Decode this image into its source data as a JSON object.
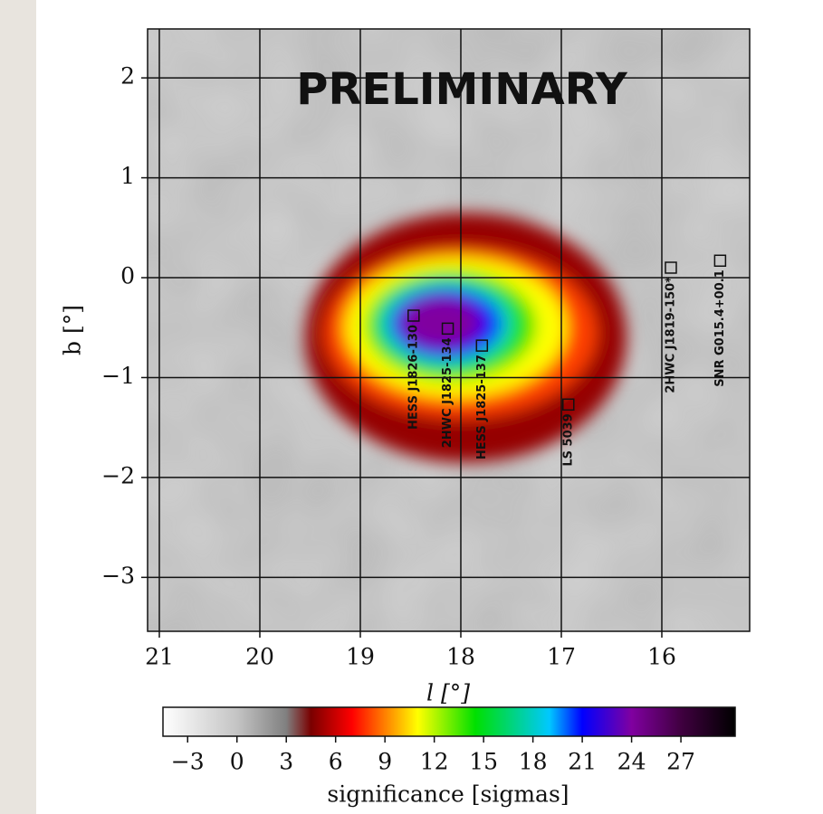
{
  "chart_data": {
    "type": "heatmap",
    "title": "PRELIMINARY",
    "x_label": "l [°]",
    "y_label": "b [°]",
    "xlim": [
      21.117,
      15.126
    ],
    "ylim": [
      -3.54,
      2.49
    ],
    "xticks": [
      21,
      20,
      19,
      18,
      17,
      16
    ],
    "yticks": [
      {
        "value": -3,
        "label": "−3"
      },
      {
        "value": -2,
        "label": "−2"
      },
      {
        "value": -1,
        "label": "−1"
      },
      0,
      1,
      2
    ],
    "grid": true,
    "background_color": "#bdbdbd",
    "contours": [
      {
        "level": 5,
        "l": 17.95,
        "b": -0.6,
        "rl": 1.6,
        "rb": 1.25
      },
      {
        "level": 8,
        "l": 18.0,
        "b": -0.55,
        "rl": 1.35,
        "rb": 0.85
      },
      {
        "level": 11,
        "l": 18.05,
        "b": -0.5,
        "rl": 1.1,
        "rb": 0.7
      },
      {
        "level": 14,
        "l": 18.1,
        "b": -0.48,
        "rl": 0.85,
        "rb": 0.55
      },
      {
        "level": 18,
        "l": 18.15,
        "b": -0.46,
        "rl": 0.65,
        "rb": 0.42
      },
      {
        "level": 21,
        "l": 18.15,
        "b": -0.46,
        "rl": 0.55,
        "rb": 0.35
      },
      {
        "level": 24,
        "l": 18.2,
        "b": -0.45,
        "rl": 0.4,
        "rb": 0.26
      }
    ],
    "sources": [
      {
        "name": "HESS J1826-130",
        "l": 18.47,
        "b": -0.38
      },
      {
        "name": "2HWC J1825-134",
        "l": 18.13,
        "b": -0.51
      },
      {
        "name": "HESS J1825-137",
        "l": 17.79,
        "b": -0.68
      },
      {
        "name": "LS 5039",
        "l": 16.93,
        "b": -1.27
      },
      {
        "name": "2HWC J1819-150*",
        "l": 15.91,
        "b": 0.1
      },
      {
        "name": "SNR G015.4+00.1",
        "l": 15.42,
        "b": 0.17
      }
    ],
    "colorbar": {
      "label": "significance [sigmas]",
      "lim": [
        -4.5,
        30.3
      ],
      "ticks": [
        {
          "value": -3,
          "label": "−3"
        },
        0,
        3,
        6,
        9,
        12,
        15,
        18,
        21,
        24,
        27
      ],
      "stops": [
        {
          "value": -4.5,
          "color": "#ffffff"
        },
        {
          "value": 0,
          "color": "#c4c4c4"
        },
        {
          "value": 3,
          "color": "#808080"
        },
        {
          "value": 4.5,
          "color": "#7a0000"
        },
        {
          "value": 7,
          "color": "#ff0000"
        },
        {
          "value": 9,
          "color": "#ff8000"
        },
        {
          "value": 11,
          "color": "#ffff00"
        },
        {
          "value": 14.5,
          "color": "#00e000"
        },
        {
          "value": 19,
          "color": "#00c8ff"
        },
        {
          "value": 21,
          "color": "#0000ff"
        },
        {
          "value": 24,
          "color": "#8000a0"
        },
        {
          "value": 27,
          "color": "#400040"
        },
        {
          "value": 30.3,
          "color": "#000000"
        }
      ]
    }
  }
}
